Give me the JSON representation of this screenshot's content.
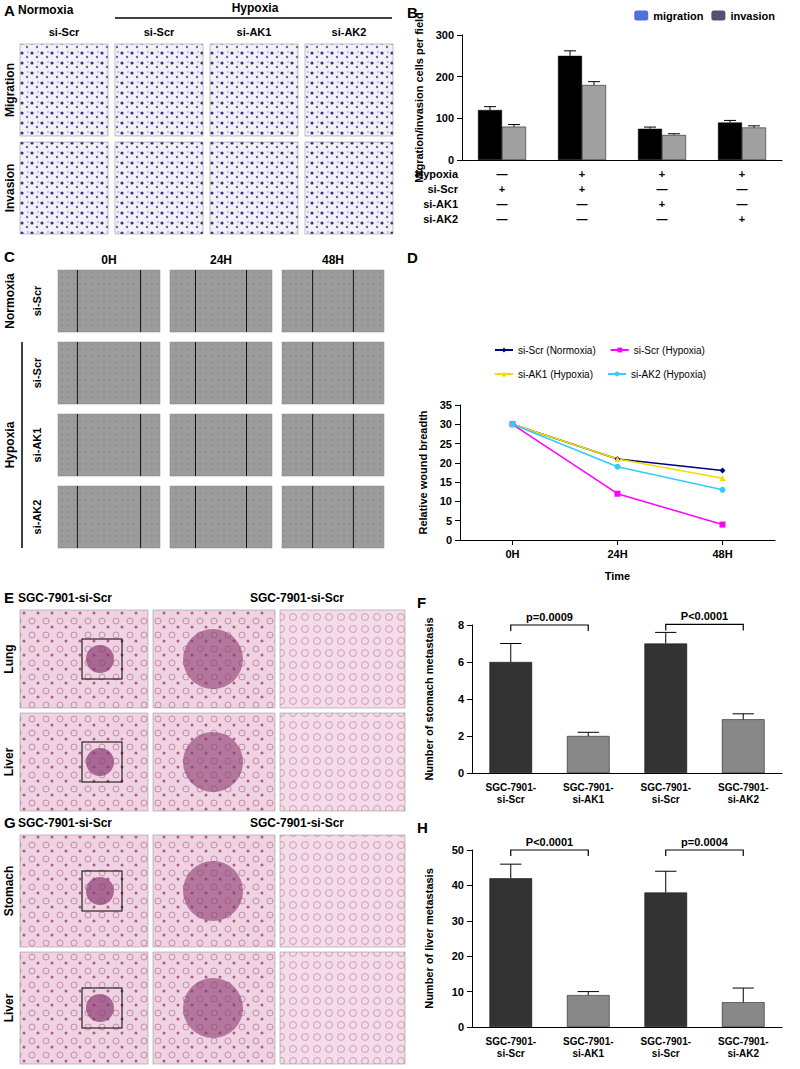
{
  "image_panels": [
    {
      "panel_label": "A",
      "header_left": "Normoxia",
      "header_right": "Hypoxia",
      "columns": [
        "si-Scr",
        "si-Scr",
        "si-AK1",
        "si-AK2"
      ],
      "rows": [
        "Migration",
        "Invasion"
      ]
    },
    {
      "panel_label": "C",
      "columns": [
        "0H",
        "24H",
        "48H"
      ],
      "row_groups": [
        {
          "label": "Normoxia",
          "rows": [
            "si-Scr"
          ]
        },
        {
          "label": "Hypoxia",
          "rows": [
            "si-Scr",
            "si-AK1",
            "si-AK2"
          ]
        }
      ]
    },
    {
      "panel_label": "E",
      "columns": [
        "SGC-7901-si-Scr",
        "SGC-7901-si-Scr"
      ],
      "rows": [
        "Lung",
        "Liver"
      ]
    },
    {
      "panel_label": "G",
      "columns": [
        "SGC-7901-si-Scr",
        "SGC-7901-si-Scr"
      ],
      "rows": [
        "Stomach",
        "Liver"
      ]
    }
  ],
  "chart_data": [
    {
      "panel_label": "B",
      "type": "bar",
      "categories": [
        null,
        null,
        null,
        null
      ],
      "series": [
        {
          "name": "migration",
          "color": "#000000",
          "values": [
            120,
            250,
            75,
            90
          ],
          "errors": [
            8,
            12,
            4,
            5
          ]
        },
        {
          "name": "invasion",
          "color": "#a0a0a0",
          "values": [
            80,
            180,
            60,
            78
          ],
          "errors": [
            5,
            8,
            3,
            4
          ]
        }
      ],
      "y_label": "Migration/invasion cells per field",
      "ylim": [
        0,
        300
      ],
      "yticks": [
        0,
        100,
        200,
        300
      ],
      "grid": false,
      "legend": "top",
      "condition_table": [
        {
          "label": "Hypoxia",
          "marks": [
            "—",
            "+",
            "+",
            "+"
          ]
        },
        {
          "label": "si-Scr",
          "marks": [
            "+",
            "+",
            "—",
            "—"
          ]
        },
        {
          "label": "si-AK1",
          "marks": [
            "—",
            "—",
            "+",
            "—"
          ]
        },
        {
          "label": "si-AK2",
          "marks": [
            "—",
            "—",
            "—",
            "+"
          ]
        }
      ]
    },
    {
      "panel_label": "D",
      "type": "line",
      "categories": [
        "0H",
        "24H",
        "48H"
      ],
      "series": [
        {
          "name": "si-Scr (Normoxia)",
          "color": "#000080",
          "marker": "diamond",
          "values": [
            30,
            21,
            18
          ]
        },
        {
          "name": "si-Scr (Hypoxia)",
          "color": "#ff00ff",
          "marker": "square",
          "values": [
            30,
            12,
            4
          ]
        },
        {
          "name": "si-AK1 (Hypoxia)",
          "color": "#f0dc00",
          "marker": "triangle",
          "values": [
            30,
            21,
            16
          ]
        },
        {
          "name": "si-AK2 (Hypoxia)",
          "color": "#33ccff",
          "marker": "circle",
          "values": [
            30,
            19,
            13
          ]
        }
      ],
      "x_label": "Time",
      "y_label": "Relative wound breadth",
      "ylim": [
        0,
        35
      ],
      "yticks": [
        0,
        5,
        10,
        15,
        20,
        25,
        30,
        35
      ],
      "grid": false,
      "legend": "top"
    },
    {
      "panel_label": "F",
      "type": "bar",
      "categories": [
        "SGC-7901-\nsi-Scr",
        "SGC-7901-\nsi-AK1",
        "SGC-7901-\nsi-Scr",
        "SGC-7901-\nsi-AK2"
      ],
      "values": [
        6,
        2,
        7,
        2.9
      ],
      "errors": [
        1,
        0.2,
        0.6,
        0.3
      ],
      "colors": [
        "#333333",
        "#888888",
        "#333333",
        "#888888"
      ],
      "y_label": "Number of stomach metastasis",
      "ylim": [
        0,
        8
      ],
      "yticks": [
        0,
        2,
        4,
        6,
        8
      ],
      "grid": false,
      "annotations": [
        {
          "text": "p=0.0009",
          "pair": [
            0,
            1
          ]
        },
        {
          "text": "P<0.0001",
          "pair": [
            2,
            3
          ]
        }
      ]
    },
    {
      "panel_label": "H",
      "type": "bar",
      "categories": [
        "SGC-7901-\nsi-Scr",
        "SGC-7901-\nsi-AK1",
        "SGC-7901-\nsi-Scr",
        "SGC-7901-\nsi-AK2"
      ],
      "values": [
        42,
        9,
        38,
        7
      ],
      "errors": [
        4,
        1,
        6,
        4
      ],
      "colors": [
        "#333333",
        "#888888",
        "#333333",
        "#888888"
      ],
      "y_label": "Number of liver metastasis",
      "ylim": [
        0,
        50
      ],
      "yticks": [
        0,
        10,
        20,
        30,
        40,
        50
      ],
      "grid": false,
      "annotations": [
        {
          "text": "P<0.0001",
          "pair": [
            0,
            1
          ]
        },
        {
          "text": "p=0.0004",
          "pair": [
            2,
            3
          ]
        }
      ]
    }
  ]
}
